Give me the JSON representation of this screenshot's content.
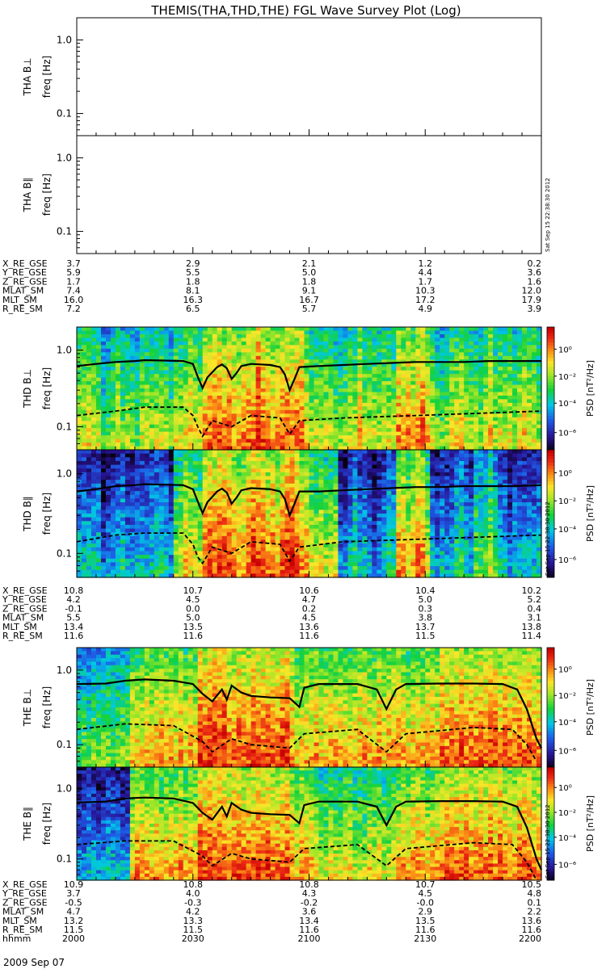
{
  "title": "THEMIS(THA,THD,THE) FGL Wave Survey Plot (Log)",
  "colorbar": {
    "label": "PSD [nT²/Hz]",
    "ticks": [
      "10⁰",
      "10⁻²",
      "10⁻⁴",
      "10⁻⁶"
    ]
  },
  "stamp": "Sat Sep 15 22:38:30 2012",
  "ylabel_freq": "freq [Hz]",
  "panels": [
    {
      "label": "THA B⊥",
      "data": false
    },
    {
      "label": "THA B∥",
      "data": false
    },
    {
      "label": "THD B⊥",
      "data": true
    },
    {
      "label": "THD B∥",
      "data": true
    },
    {
      "label": "THE B⊥",
      "data": true
    },
    {
      "label": "THE B∥",
      "data": true
    }
  ],
  "ephemeris": [
    {
      "probe": "THA",
      "rows": [
        [
          "X_RE_GSE",
          "3.7",
          "2.9",
          "2.1",
          "1.2",
          "0.2"
        ],
        [
          "Y_RE_GSE",
          "5.9",
          "5.5",
          "5.0",
          "4.4",
          "3.6"
        ],
        [
          "Z_RE_GSE",
          "1.7",
          "1.8",
          "1.8",
          "1.7",
          "1.6"
        ],
        [
          "MLAT_SM",
          "7.4",
          "8.1",
          "9.1",
          "10.3",
          "12.0"
        ],
        [
          "MLT_SM",
          "16.0",
          "16.3",
          "16.7",
          "17.2",
          "17.9"
        ],
        [
          "R_RE_SM",
          "7.2",
          "6.5",
          "5.7",
          "4.9",
          "3.9"
        ]
      ]
    },
    {
      "probe": "THD",
      "rows": [
        [
          "X_RE_GSE",
          "10.8",
          "10.7",
          "10.6",
          "10.4",
          "10.2"
        ],
        [
          "Y_RE_GSE",
          "4.2",
          "4.5",
          "4.7",
          "5.0",
          "5.2"
        ],
        [
          "Z_RE_GSE",
          "-0.1",
          "0.0",
          "0.2",
          "0.3",
          "0.4"
        ],
        [
          "MLAT_SM",
          "5.5",
          "5.0",
          "4.5",
          "3.8",
          "3.1"
        ],
        [
          "MLT_SM",
          "13.4",
          "13.5",
          "13.6",
          "13.7",
          "13.8"
        ],
        [
          "R_RE_SM",
          "11.6",
          "11.6",
          "11.6",
          "11.5",
          "11.4"
        ]
      ]
    },
    {
      "probe": "THE",
      "rows": [
        [
          "X_RE_GSE",
          "10.9",
          "10.8",
          "10.8",
          "10.7",
          "10.5"
        ],
        [
          "Y_RE_GSE",
          "3.7",
          "4.0",
          "4.3",
          "4.5",
          "4.8"
        ],
        [
          "Z_RE_GSE",
          "-0.5",
          "-0.3",
          "-0.2",
          "-0.0",
          "0.1"
        ],
        [
          "MLAT_SM",
          "4.7",
          "4.2",
          "3.6",
          "2.9",
          "2.2"
        ],
        [
          "MLT_SM",
          "13.2",
          "13.3",
          "13.4",
          "13.5",
          "13.6"
        ],
        [
          "R_RE_SM",
          "11.5",
          "11.5",
          "11.6",
          "11.6",
          "11.6"
        ],
        [
          "hhmm",
          "2000",
          "2030",
          "2100",
          "2130",
          "2200"
        ]
      ]
    }
  ],
  "date": "2009 Sep 07",
  "chart_data": {
    "type": "heatmap",
    "title": "THEMIS(THA,THD,THE) FGL Wave Survey Plot (Log)",
    "x_label": "hhmm",
    "x_ticks": [
      "2000",
      "2030",
      "2100",
      "2130",
      "2200"
    ],
    "y_label": "freq [Hz]",
    "y_scale": "log",
    "y_range": [
      0.05,
      2.0
    ],
    "y_ticks": [
      1.0,
      0.1
    ],
    "colorbar_label": "PSD [nT^2/Hz]",
    "colorbar_range": [
      1e-06,
      10.0
    ],
    "colorbar_scale": "log",
    "colorbar_ticks": [
      1,
      0.01,
      0.0001,
      1e-06
    ],
    "series": [
      {
        "name": "THA B⊥",
        "values": []
      },
      {
        "name": "THA B∥",
        "values": []
      },
      {
        "name": "THD B⊥",
        "solid_line": [
          [
            0,
            0.62
          ],
          [
            4,
            0.66
          ],
          [
            8,
            0.7
          ],
          [
            12,
            0.72
          ],
          [
            14,
            0.74
          ],
          [
            18,
            0.73
          ],
          [
            22,
            0.72
          ],
          [
            24,
            0.66
          ],
          [
            25,
            0.45
          ],
          [
            26,
            0.32
          ],
          [
            27,
            0.44
          ],
          [
            29,
            0.6
          ],
          [
            30,
            0.65
          ],
          [
            31,
            0.58
          ],
          [
            32,
            0.42
          ],
          [
            33,
            0.5
          ],
          [
            34,
            0.62
          ],
          [
            36,
            0.66
          ],
          [
            38,
            0.65
          ],
          [
            40,
            0.64
          ],
          [
            42,
            0.6
          ],
          [
            43,
            0.48
          ],
          [
            44,
            0.3
          ],
          [
            45,
            0.42
          ],
          [
            46,
            0.6
          ],
          [
            50,
            0.62
          ],
          [
            55,
            0.64
          ],
          [
            60,
            0.66
          ],
          [
            65,
            0.68
          ],
          [
            70,
            0.7
          ],
          [
            75,
            0.7
          ],
          [
            80,
            0.7
          ],
          [
            85,
            0.72
          ],
          [
            90,
            0.72
          ],
          [
            96,
            0.72
          ]
        ],
        "dashed_line": [
          [
            0,
            0.14
          ],
          [
            8,
            0.16
          ],
          [
            14,
            0.18
          ],
          [
            22,
            0.18
          ],
          [
            24,
            0.14
          ],
          [
            25,
            0.1
          ],
          [
            26,
            0.075
          ],
          [
            28,
            0.12
          ],
          [
            32,
            0.1
          ],
          [
            36,
            0.14
          ],
          [
            42,
            0.13
          ],
          [
            44,
            0.08
          ],
          [
            46,
            0.12
          ],
          [
            55,
            0.13
          ],
          [
            70,
            0.14
          ],
          [
            96,
            0.16
          ]
        ]
      },
      {
        "name": "THD B∥",
        "solid_line": [
          [
            0,
            0.6
          ],
          [
            4,
            0.64
          ],
          [
            8,
            0.7
          ],
          [
            12,
            0.72
          ],
          [
            14,
            0.74
          ],
          [
            18,
            0.73
          ],
          [
            22,
            0.72
          ],
          [
            24,
            0.64
          ],
          [
            25,
            0.45
          ],
          [
            26,
            0.32
          ],
          [
            27,
            0.44
          ],
          [
            29,
            0.6
          ],
          [
            30,
            0.65
          ],
          [
            31,
            0.58
          ],
          [
            32,
            0.42
          ],
          [
            33,
            0.5
          ],
          [
            34,
            0.62
          ],
          [
            36,
            0.66
          ],
          [
            38,
            0.65
          ],
          [
            40,
            0.64
          ],
          [
            42,
            0.6
          ],
          [
            43,
            0.48
          ],
          [
            44,
            0.3
          ],
          [
            45,
            0.42
          ],
          [
            46,
            0.6
          ],
          [
            50,
            0.6
          ],
          [
            55,
            0.62
          ],
          [
            60,
            0.64
          ],
          [
            65,
            0.66
          ],
          [
            70,
            0.68
          ],
          [
            75,
            0.68
          ],
          [
            80,
            0.7
          ],
          [
            85,
            0.7
          ],
          [
            90,
            0.7
          ],
          [
            96,
            0.72
          ]
        ],
        "dashed_line": [
          [
            0,
            0.14
          ],
          [
            8,
            0.17
          ],
          [
            14,
            0.18
          ],
          [
            22,
            0.18
          ],
          [
            24,
            0.13
          ],
          [
            25,
            0.09
          ],
          [
            26,
            0.075
          ],
          [
            28,
            0.12
          ],
          [
            32,
            0.1
          ],
          [
            36,
            0.14
          ],
          [
            42,
            0.13
          ],
          [
            44,
            0.08
          ],
          [
            46,
            0.12
          ],
          [
            55,
            0.14
          ],
          [
            70,
            0.15
          ],
          [
            96,
            0.17
          ]
        ]
      },
      {
        "name": "THE B⊥",
        "solid_line": [
          [
            0,
            0.65
          ],
          [
            6,
            0.66
          ],
          [
            10,
            0.72
          ],
          [
            14,
            0.75
          ],
          [
            20,
            0.72
          ],
          [
            24,
            0.65
          ],
          [
            26,
            0.48
          ],
          [
            28,
            0.38
          ],
          [
            30,
            0.55
          ],
          [
            31,
            0.4
          ],
          [
            32,
            0.62
          ],
          [
            34,
            0.5
          ],
          [
            36,
            0.45
          ],
          [
            40,
            0.43
          ],
          [
            44,
            0.42
          ],
          [
            46,
            0.32
          ],
          [
            47,
            0.58
          ],
          [
            50,
            0.65
          ],
          [
            58,
            0.65
          ],
          [
            62,
            0.55
          ],
          [
            64,
            0.3
          ],
          [
            66,
            0.55
          ],
          [
            68,
            0.65
          ],
          [
            75,
            0.66
          ],
          [
            82,
            0.66
          ],
          [
            88,
            0.65
          ],
          [
            91,
            0.55
          ],
          [
            93,
            0.3
          ],
          [
            95,
            0.12
          ],
          [
            96,
            0.09
          ]
        ],
        "dashed_line": [
          [
            0,
            0.16
          ],
          [
            10,
            0.19
          ],
          [
            20,
            0.18
          ],
          [
            26,
            0.11
          ],
          [
            28,
            0.08
          ],
          [
            32,
            0.12
          ],
          [
            36,
            0.1
          ],
          [
            44,
            0.09
          ],
          [
            47,
            0.14
          ],
          [
            58,
            0.16
          ],
          [
            64,
            0.08
          ],
          [
            68,
            0.14
          ],
          [
            82,
            0.17
          ],
          [
            90,
            0.16
          ],
          [
            93,
            0.1
          ],
          [
            95,
            0.06
          ]
        ]
      },
      {
        "name": "THE B∥",
        "solid_line": [
          [
            0,
            0.63
          ],
          [
            6,
            0.65
          ],
          [
            10,
            0.72
          ],
          [
            14,
            0.74
          ],
          [
            20,
            0.72
          ],
          [
            24,
            0.62
          ],
          [
            26,
            0.45
          ],
          [
            28,
            0.36
          ],
          [
            30,
            0.55
          ],
          [
            31,
            0.4
          ],
          [
            32,
            0.62
          ],
          [
            34,
            0.5
          ],
          [
            36,
            0.45
          ],
          [
            40,
            0.43
          ],
          [
            44,
            0.42
          ],
          [
            46,
            0.32
          ],
          [
            47,
            0.58
          ],
          [
            50,
            0.65
          ],
          [
            58,
            0.65
          ],
          [
            62,
            0.55
          ],
          [
            64,
            0.3
          ],
          [
            66,
            0.55
          ],
          [
            68,
            0.65
          ],
          [
            75,
            0.66
          ],
          [
            82,
            0.66
          ],
          [
            88,
            0.65
          ],
          [
            91,
            0.55
          ],
          [
            93,
            0.28
          ],
          [
            95,
            0.1
          ],
          [
            96,
            0.07
          ]
        ],
        "dashed_line": [
          [
            0,
            0.16
          ],
          [
            10,
            0.18
          ],
          [
            20,
            0.18
          ],
          [
            26,
            0.11
          ],
          [
            28,
            0.08
          ],
          [
            32,
            0.12
          ],
          [
            36,
            0.1
          ],
          [
            44,
            0.09
          ],
          [
            47,
            0.14
          ],
          [
            58,
            0.16
          ],
          [
            64,
            0.08
          ],
          [
            68,
            0.14
          ],
          [
            82,
            0.17
          ],
          [
            90,
            0.16
          ],
          [
            93,
            0.09
          ],
          [
            95,
            0.05
          ]
        ]
      }
    ]
  }
}
